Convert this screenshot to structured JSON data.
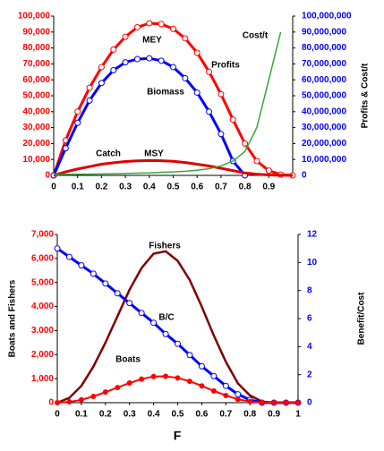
{
  "chart_data": [
    {
      "type": "line",
      "x": [
        0,
        0.05,
        0.1,
        0.15,
        0.2,
        0.25,
        0.3,
        0.35,
        0.4,
        0.45,
        0.5,
        0.55,
        0.6,
        0.65,
        0.7,
        0.75,
        0.8,
        0.85,
        0.9,
        0.95,
        1
      ],
      "xlim": [
        0,
        1
      ],
      "xticks": [
        0,
        0.1,
        0.2,
        0.3,
        0.4,
        0.5,
        0.6,
        0.7,
        0.8,
        0.9
      ],
      "ylim": [
        0,
        100000
      ],
      "yticks": [
        0,
        {
          "value": 10000,
          "label": "10,000"
        },
        {
          "value": 20000,
          "label": "20,000"
        },
        {
          "value": 30000,
          "label": "30,000"
        },
        {
          "value": 40000,
          "label": "40,000"
        },
        {
          "value": 50000,
          "label": "50,000"
        },
        {
          "value": 60000,
          "label": "60,000"
        },
        {
          "value": 70000,
          "label": "70,000"
        },
        {
          "value": 80000,
          "label": "80,000"
        },
        {
          "value": 90000,
          "label": "90,000"
        },
        {
          "value": 100000,
          "label": "100,000"
        }
      ],
      "y2lim": [
        0,
        100000000
      ],
      "y2ticks": [
        0,
        {
          "value": 10000000,
          "label": "10,000,000"
        },
        {
          "value": 20000000,
          "label": "20,000,000"
        },
        {
          "value": 30000000,
          "label": "30,000,000"
        },
        {
          "value": 40000000,
          "label": "40,000,000"
        },
        {
          "value": 50000000,
          "label": "50,000,000"
        },
        {
          "value": 60000000,
          "label": "60,000,000"
        },
        {
          "value": 70000000,
          "label": "70,000,000"
        },
        {
          "value": 80000000,
          "label": "80,000,000"
        },
        {
          "value": 90000000,
          "label": "90,000,000"
        },
        {
          "value": 100000000,
          "label": "100,000,000"
        }
      ],
      "y2label": "Profits & Cost/t",
      "annotations": [
        "MEY",
        "MSY"
      ],
      "series": [
        {
          "name": "Profits",
          "color": "#ff0000",
          "axis": "y2",
          "marker": "open",
          "values": [
            0,
            22000000,
            40000000,
            55000000,
            68000000,
            79000000,
            87000000,
            93000000,
            95500000,
            95000000,
            92000000,
            86000000,
            77000000,
            65000000,
            51000000,
            35000000,
            20000000,
            9000000,
            3000000,
            500000,
            0
          ]
        },
        {
          "name": "Biomass",
          "color": "#0000ff",
          "marker": "open",
          "values": [
            0,
            17000,
            33000,
            47000,
            58000,
            66000,
            71000,
            73000,
            73500,
            72000,
            68000,
            61000,
            52000,
            40000,
            26000,
            9000,
            0,
            null,
            null,
            null,
            null
          ]
        },
        {
          "name": "Catch",
          "color": "#e00000",
          "values": [
            0,
            2200,
            4000,
            5500,
            7000,
            7900,
            8700,
            9100,
            9300,
            9200,
            8800,
            8100,
            7000,
            5900,
            4500,
            3000,
            1500,
            800,
            300,
            100,
            0
          ]
        },
        {
          "name": "Cost/t",
          "color": "#3aa53a",
          "axis": "y2",
          "values": [
            500000,
            600000,
            700000,
            800000,
            900000,
            1000000,
            1200000,
            1400000,
            1600000,
            1900000,
            2200000,
            2600000,
            3200000,
            4200000,
            6000000,
            9000000,
            15000000,
            30000000,
            60000000,
            90000000,
            null
          ]
        }
      ]
    },
    {
      "type": "line",
      "x": [
        0,
        0.05,
        0.1,
        0.15,
        0.2,
        0.25,
        0.3,
        0.35,
        0.4,
        0.45,
        0.5,
        0.55,
        0.6,
        0.65,
        0.7,
        0.75,
        0.8,
        0.85,
        0.9,
        0.95,
        1
      ],
      "xlim": [
        0,
        1
      ],
      "xticks": [
        0,
        0.1,
        0.2,
        0.3,
        0.4,
        0.5,
        0.6,
        0.7,
        0.8,
        0.9,
        1
      ],
      "xlabel": "F",
      "ylim": [
        0,
        7000
      ],
      "yticks": [
        0,
        {
          "value": 1000,
          "label": "1,000"
        },
        {
          "value": 2000,
          "label": "2,000"
        },
        {
          "value": 3000,
          "label": "3,000"
        },
        {
          "value": 4000,
          "label": "4,000"
        },
        {
          "value": 5000,
          "label": "5,000"
        },
        {
          "value": 6000,
          "label": "6,000"
        },
        {
          "value": 7000,
          "label": "7,000"
        }
      ],
      "ylabel": "Boats and Fishers",
      "y2lim": [
        0,
        12
      ],
      "y2ticks": [
        0,
        2,
        4,
        6,
        8,
        10,
        12
      ],
      "y2label": "Benefit/Cost",
      "series": [
        {
          "name": "Fishers",
          "color": "#800000",
          "values": [
            0,
            200,
            700,
            1500,
            2500,
            3600,
            4700,
            5600,
            6200,
            6300,
            5900,
            5100,
            4000,
            2800,
            1700,
            800,
            300,
            50,
            0,
            0,
            0
          ]
        },
        {
          "name": "B/C",
          "color": "#0000ff",
          "axis": "y2",
          "marker": "open",
          "values": [
            11,
            10.4,
            9.8,
            9.2,
            8.5,
            7.8,
            7.1,
            6.4,
            5.7,
            4.9,
            4.2,
            3.4,
            2.6,
            1.9,
            1.2,
            0.6,
            0.2,
            0,
            0,
            0,
            0
          ]
        },
        {
          "name": "Boats",
          "color": "#ff0000",
          "marker": "filled",
          "values": [
            0,
            35,
            120,
            260,
            440,
            630,
            820,
            980,
            1090,
            1100,
            1030,
            890,
            700,
            490,
            300,
            140,
            50,
            10,
            0,
            0,
            0
          ]
        }
      ]
    }
  ]
}
